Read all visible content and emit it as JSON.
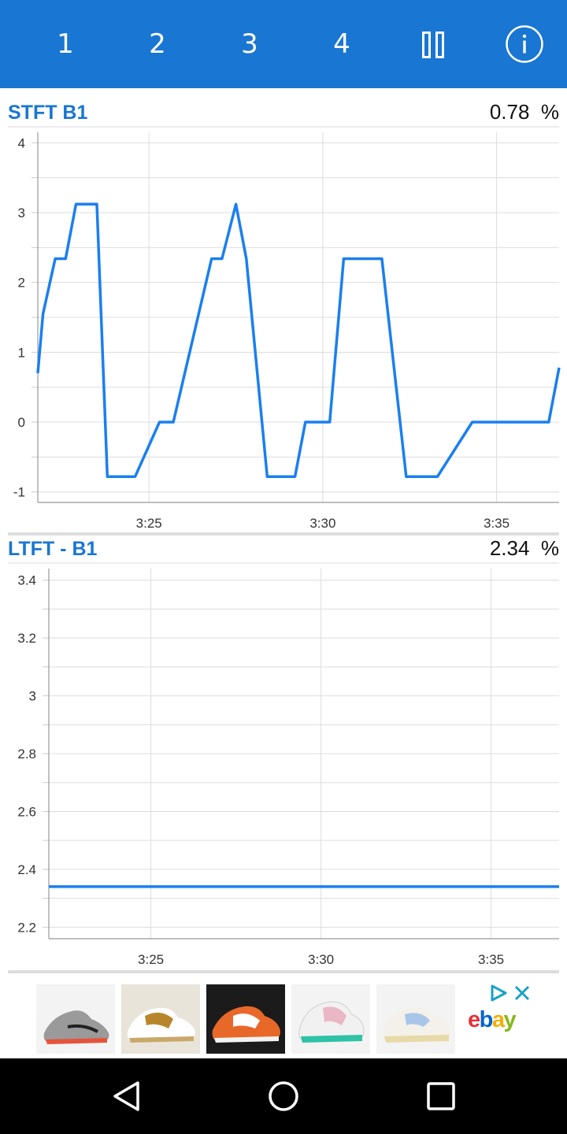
{
  "tabs": [
    "1",
    "2",
    "3",
    "4"
  ],
  "icons": {
    "pause": "pause-icon",
    "info": "info-icon",
    "back": "back-icon",
    "home": "home-icon",
    "recents": "recents-icon",
    "ad_choices": "adchoices-icon",
    "close": "close-icon"
  },
  "colors": {
    "accent": "#1976d2",
    "line": "#1a7ff0",
    "grid": "#dddddd"
  },
  "charts": [
    {
      "title": "STFT B1",
      "value": "0.78",
      "unit": "%"
    },
    {
      "title": "LTFT - B1",
      "value": "2.34",
      "unit": "%"
    }
  ],
  "chart_data": [
    {
      "type": "line",
      "title": "STFT B1",
      "xlabel": "",
      "ylabel": "",
      "x_ticks": [
        "3:25",
        "3:30",
        "3:35"
      ],
      "x_tick_values": [
        25,
        30,
        35
      ],
      "xlim": [
        21.8,
        36.8
      ],
      "y_ticks": [
        "4",
        "3",
        "2",
        "1",
        "0",
        "-1"
      ],
      "y_tick_values": [
        4,
        3,
        2,
        1,
        0,
        -1
      ],
      "ylim": [
        -1.15,
        4.15
      ],
      "grid": true,
      "series": [
        {
          "x": [
            21.8,
            21.95,
            22.3,
            22.6,
            22.9,
            23.5,
            23.8,
            24.4,
            24.6,
            25.3,
            25.7,
            26.8,
            27.1,
            27.5,
            27.8,
            28.4,
            28.7,
            29.2,
            29.5,
            30.2,
            30.6,
            31.4,
            31.7,
            32.4,
            33.0,
            33.3,
            34.3,
            34.8,
            35.5,
            36.5,
            36.8
          ],
          "y": [
            0.7,
            1.55,
            2.34,
            2.34,
            3.12,
            3.12,
            -0.78,
            -0.78,
            -0.78,
            0.0,
            0.0,
            2.34,
            2.34,
            3.12,
            2.34,
            -0.78,
            -0.78,
            -0.78,
            0.0,
            0.0,
            2.34,
            2.34,
            2.34,
            -0.78,
            -0.78,
            -0.78,
            0.0,
            0.0,
            0.0,
            0.0,
            0.78
          ]
        }
      ]
    },
    {
      "type": "line",
      "title": "LTFT - B1",
      "xlabel": "",
      "ylabel": "",
      "x_ticks": [
        "3:25",
        "3:30",
        "3:35"
      ],
      "x_tick_values": [
        25,
        30,
        35
      ],
      "xlim": [
        22.0,
        37.0
      ],
      "y_ticks": [
        "3.4",
        "3.2",
        "3",
        "2.8",
        "2.6",
        "2.4",
        "2.2"
      ],
      "y_tick_values": [
        3.4,
        3.2,
        3.0,
        2.8,
        2.6,
        2.4,
        2.2
      ],
      "ylim": [
        2.16,
        3.44
      ],
      "grid": true,
      "series": [
        {
          "x": [
            22.0,
            37.0
          ],
          "y": [
            2.34,
            2.34
          ]
        }
      ]
    }
  ],
  "ad": {
    "brand": "ebay"
  }
}
